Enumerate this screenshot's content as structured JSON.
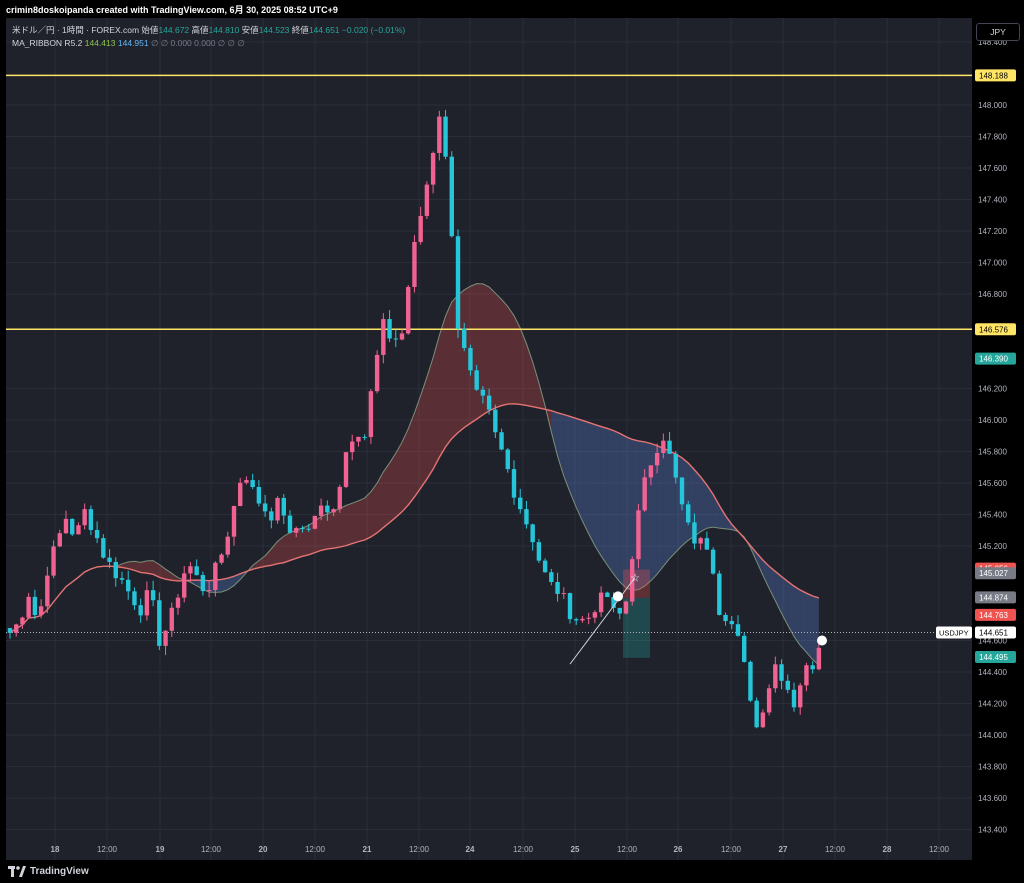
{
  "header": {
    "credit": "crimin8doskoipanda created with TradingView.com, 6月 30, 2025 08:52 UTC+9"
  },
  "legend": {
    "symbol": "米ドル／円 · 1時間 · FOREX.com",
    "open_label": "始値",
    "open": "144.672",
    "high_label": "高値",
    "high": "144.810",
    "low_label": "安値",
    "low": "144.523",
    "close_label": "終値",
    "close": "144.651",
    "change": "−0.020 (−0.01%)",
    "indicator_name": "MA_RIBBON R5.2",
    "ma1": "144.413",
    "ma2": "144.951",
    "rest": "∅ ∅ 0.000 0.000 ∅ ∅ ∅"
  },
  "currency_button": "JPY",
  "brand": "TradingView",
  "colors": {
    "background": "#1f222b",
    "bull": "#f06292",
    "bear": "#26c6da",
    "horizontal_line": "#ffe566",
    "ribbon_red": "#ef5350",
    "ribbon_blue": "#5c7fd6"
  },
  "chart_data": {
    "type": "candlestick",
    "title": "",
    "ylim": [
      143.3,
      148.5
    ],
    "y_ticks": [
      "148.400",
      "148.000",
      "147.800",
      "147.600",
      "147.400",
      "147.200",
      "147.000",
      "146.800",
      "146.200",
      "146.000",
      "145.800",
      "145.600",
      "145.400",
      "145.200",
      "144.600",
      "144.400",
      "144.200",
      "144.000",
      "143.800",
      "143.600",
      "143.400"
    ],
    "x_ticks": [
      "18",
      "12:00",
      "19",
      "12:00",
      "20",
      "12:00",
      "21",
      "12:00",
      "24",
      "12:00",
      "25",
      "12:00",
      "26",
      "12:00",
      "27",
      "12:00",
      "28",
      "12:00"
    ],
    "horizontal_lines": [
      148.188,
      146.576
    ],
    "price_labels": [
      {
        "value": "148.188",
        "color": "#ffe566",
        "text_color": "#000000"
      },
      {
        "value": "146.576",
        "color": "#ffe566",
        "text_color": "#000000"
      },
      {
        "value": "146.390",
        "color": "#26a69a",
        "text_color": "#ffffff"
      },
      {
        "value": "145.056",
        "color": "#ef5350",
        "text_color": "#ffffff"
      },
      {
        "value": "145.027",
        "color": "#787b86",
        "text_color": "#ffffff"
      },
      {
        "value": "144.874",
        "color": "#787b86",
        "text_color": "#ffffff"
      },
      {
        "value": "144.763",
        "color": "#ef5350",
        "text_color": "#ffffff"
      },
      {
        "value": "144.651",
        "color": "#ffffff",
        "text_color": "#000000"
      },
      {
        "value": "144.495",
        "color": "#26a69a",
        "text_color": "#ffffff"
      }
    ],
    "symbol_label": "USDJPY",
    "last_price": 144.651,
    "close_path": [
      [
        0,
        144.65
      ],
      [
        1.5,
        144.72
      ],
      [
        3,
        144.9
      ],
      [
        4.5,
        144.7
      ],
      [
        6,
        145.05
      ],
      [
        7.5,
        145.22
      ],
      [
        9,
        145.38
      ],
      [
        10.5,
        145.25
      ],
      [
        12,
        145.42
      ],
      [
        13.5,
        145.3
      ],
      [
        15,
        145.15
      ],
      [
        16.5,
        145.05
      ],
      [
        18,
        144.98
      ],
      [
        19.5,
        144.88
      ],
      [
        21,
        144.8
      ],
      [
        22.5,
        144.92
      ],
      [
        24,
        144.6
      ],
      [
        25.5,
        144.7
      ],
      [
        27,
        144.9
      ],
      [
        28.5,
        145.1
      ],
      [
        30,
        145.0
      ],
      [
        31.5,
        144.9
      ],
      [
        33,
        145.05
      ],
      [
        34.5,
        145.2
      ],
      [
        36,
        145.45
      ],
      [
        37.5,
        145.7
      ],
      [
        39,
        145.55
      ],
      [
        40.5,
        145.45
      ],
      [
        42,
        145.4
      ],
      [
        43.5,
        145.5
      ],
      [
        45,
        145.25
      ],
      [
        46.5,
        145.35
      ],
      [
        48,
        145.3
      ],
      [
        49.5,
        145.45
      ],
      [
        51,
        145.4
      ],
      [
        52.5,
        145.5
      ],
      [
        54,
        145.8
      ],
      [
        55.5,
        145.95
      ],
      [
        57,
        145.9
      ],
      [
        58.5,
        146.3
      ],
      [
        60,
        146.6
      ],
      [
        61.5,
        146.5
      ],
      [
        63,
        146.55
      ],
      [
        64.5,
        147.0
      ],
      [
        66,
        147.3
      ],
      [
        67.5,
        147.6
      ],
      [
        69,
        147.95
      ],
      [
        70.5,
        147.5
      ],
      [
        72,
        146.6
      ],
      [
        73.5,
        146.35
      ],
      [
        75,
        146.15
      ],
      [
        76.5,
        146.1
      ],
      [
        78,
        145.9
      ],
      [
        79.5,
        145.75
      ],
      [
        81,
        145.55
      ],
      [
        82.5,
        145.4
      ],
      [
        84,
        145.25
      ],
      [
        85.5,
        145.05
      ],
      [
        87,
        144.95
      ],
      [
        88.5,
        144.9
      ],
      [
        90,
        144.78
      ],
      [
        91.5,
        144.72
      ],
      [
        93,
        144.75
      ],
      [
        94.5,
        144.85
      ],
      [
        96,
        144.88
      ],
      [
        97.5,
        144.72
      ],
      [
        99,
        144.85
      ],
      [
        100.5,
        145.3
      ],
      [
        102,
        145.6
      ],
      [
        103.5,
        145.8
      ],
      [
        105,
        145.9
      ],
      [
        106.5,
        145.7
      ],
      [
        108,
        145.45
      ],
      [
        109.5,
        145.25
      ],
      [
        111,
        145.22
      ],
      [
        112.5,
        145.2
      ],
      [
        114,
        144.8
      ],
      [
        115.5,
        144.75
      ],
      [
        117,
        144.6
      ],
      [
        118.5,
        144.35
      ],
      [
        120,
        144.05
      ],
      [
        121.5,
        144.25
      ],
      [
        123,
        144.45
      ],
      [
        124.5,
        144.35
      ],
      [
        126,
        144.2
      ],
      [
        127.5,
        144.4
      ],
      [
        129,
        144.45
      ],
      [
        130.5,
        144.65
      ]
    ]
  }
}
